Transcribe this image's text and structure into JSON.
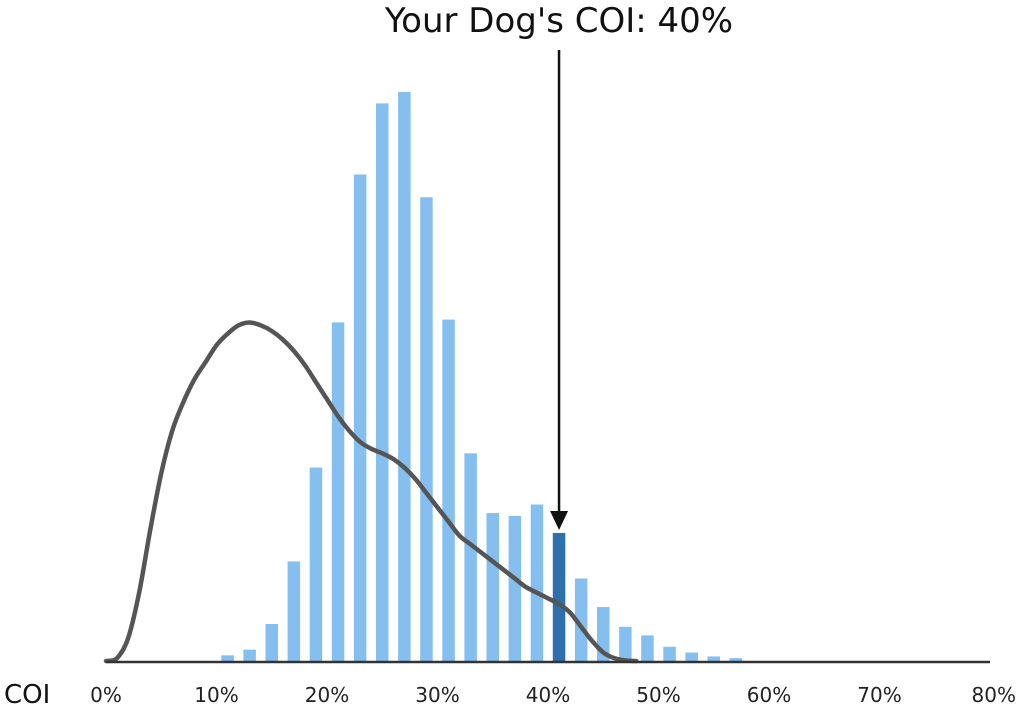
{
  "chart_data": {
    "type": "bar",
    "title": "Your Dog's COI: 40%",
    "xlabel": "COI",
    "ylabel": "",
    "xlim": [
      0,
      80
    ],
    "x_ticks": [
      "0%",
      "10%",
      "20%",
      "30%",
      "40%",
      "50%",
      "60%",
      "70%",
      "80%"
    ],
    "grid": false,
    "bar_color": "#85bff0",
    "highlight_color": "#2e6fad",
    "curve_color": "#555555",
    "axis_color": "#333333",
    "highlight_value": 41,
    "bars": [
      {
        "x": 11,
        "value": 1
      },
      {
        "x": 13,
        "value": 2
      },
      {
        "x": 15,
        "value": 6.5
      },
      {
        "x": 17,
        "value": 17.5
      },
      {
        "x": 19,
        "value": 34
      },
      {
        "x": 21,
        "value": 59.5
      },
      {
        "x": 23,
        "value": 85.5
      },
      {
        "x": 25,
        "value": 98
      },
      {
        "x": 27,
        "value": 100
      },
      {
        "x": 29,
        "value": 81.5
      },
      {
        "x": 31,
        "value": 60
      },
      {
        "x": 33,
        "value": 36.5
      },
      {
        "x": 35,
        "value": 26
      },
      {
        "x": 37,
        "value": 25.5
      },
      {
        "x": 39,
        "value": 27.5
      },
      {
        "x": 41,
        "value": 22.5
      },
      {
        "x": 43,
        "value": 14.5
      },
      {
        "x": 45,
        "value": 9.5
      },
      {
        "x": 47,
        "value": 6
      },
      {
        "x": 49,
        "value": 4.5
      },
      {
        "x": 51,
        "value": 2.5
      },
      {
        "x": 53,
        "value": 1.5
      },
      {
        "x": 55,
        "value": 0.8
      },
      {
        "x": 57,
        "value": 0.5
      }
    ],
    "curve": [
      [
        0,
        0
      ],
      [
        1,
        0.5
      ],
      [
        2,
        4
      ],
      [
        3,
        12
      ],
      [
        4,
        23
      ],
      [
        5,
        33
      ],
      [
        6,
        40.5
      ],
      [
        7,
        45.5
      ],
      [
        8,
        49.5
      ],
      [
        9,
        52.5
      ],
      [
        10,
        55.5
      ],
      [
        11,
        57.5
      ],
      [
        12,
        59
      ],
      [
        13,
        59.5
      ],
      [
        14,
        59
      ],
      [
        15,
        58
      ],
      [
        16,
        56.5
      ],
      [
        17,
        54.5
      ],
      [
        18,
        52
      ],
      [
        19,
        49
      ],
      [
        20,
        46
      ],
      [
        21,
        43
      ],
      [
        22,
        40.5
      ],
      [
        23,
        38.5
      ],
      [
        24,
        37.3
      ],
      [
        25,
        36.5
      ],
      [
        26,
        35.5
      ],
      [
        27,
        34
      ],
      [
        28,
        32
      ],
      [
        29,
        29.5
      ],
      [
        30,
        27
      ],
      [
        31,
        24.5
      ],
      [
        32,
        22
      ],
      [
        33,
        20.5
      ],
      [
        34,
        19
      ],
      [
        35,
        17.5
      ],
      [
        36,
        16
      ],
      [
        37,
        14.5
      ],
      [
        38,
        13
      ],
      [
        39,
        12
      ],
      [
        40,
        11
      ],
      [
        41,
        10
      ],
      [
        42,
        8.5
      ],
      [
        43,
        6
      ],
      [
        44,
        3.5
      ],
      [
        45,
        1.5
      ],
      [
        46,
        0.5
      ],
      [
        47,
        0.1
      ],
      [
        48,
        0
      ]
    ]
  }
}
